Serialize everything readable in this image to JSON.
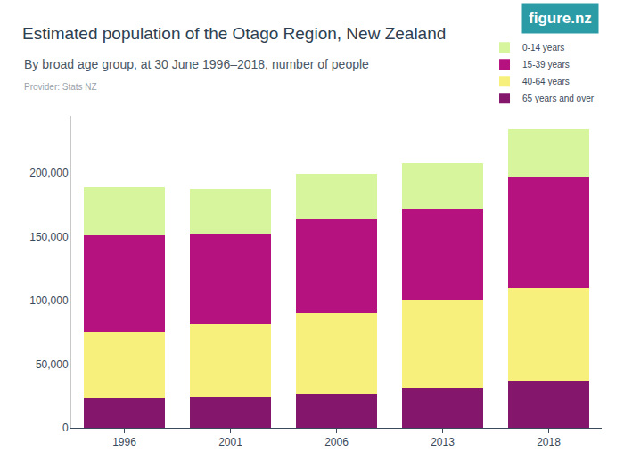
{
  "chart_data": {
    "type": "bar",
    "stacked": true,
    "title": "Estimated population of the Otago Region, New Zealand",
    "subtitle": "By broad age group, at 30 June 1996–2018, number of people",
    "source": "Provider: Stats NZ",
    "logo": "figure.nz",
    "categories": [
      "1996",
      "2001",
      "2006",
      "2013",
      "2018"
    ],
    "series": [
      {
        "name": "0-14 years",
        "color": "#d6f59c",
        "values": [
          37300,
          35200,
          35200,
          35900,
          38000
        ]
      },
      {
        "name": "15-39 years",
        "color": "#b5127f",
        "values": [
          76000,
          70400,
          74000,
          71100,
          86600
        ]
      },
      {
        "name": "40-64 years",
        "color": "#f7f07c",
        "values": [
          51400,
          57100,
          63300,
          69000,
          72600
        ]
      },
      {
        "name": "65 years and over",
        "color": "#84176b",
        "values": [
          24000,
          24600,
          26800,
          31700,
          37300
        ]
      }
    ],
    "ylim": [
      0,
      245000
    ],
    "yticks": [
      0,
      {
        "value": 50000,
        "label": "50,000"
      },
      {
        "value": 100000,
        "label": "100,000"
      },
      {
        "value": 150000,
        "label": "150,000"
      },
      {
        "value": 200000,
        "label": "200,000"
      }
    ],
    "grid": false,
    "legend": "top right"
  }
}
